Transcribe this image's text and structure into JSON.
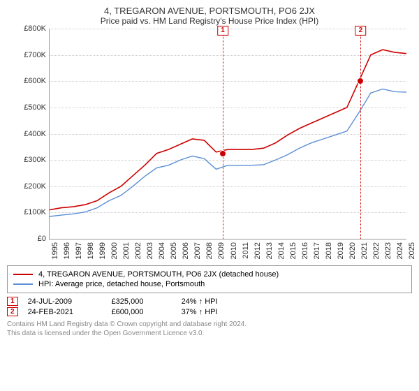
{
  "title": "4, TREGARON AVENUE, PORTSMOUTH, PO6 2JX",
  "subtitle": "Price paid vs. HM Land Registry's House Price Index (HPI)",
  "chart": {
    "type": "line",
    "background_color": "#ffffff",
    "grid_color": "#cccccc",
    "x_years": [
      1995,
      1996,
      1997,
      1998,
      1999,
      2000,
      2001,
      2002,
      2003,
      2004,
      2005,
      2006,
      2007,
      2008,
      2009,
      2010,
      2011,
      2012,
      2013,
      2014,
      2015,
      2016,
      2017,
      2018,
      2019,
      2020,
      2021,
      2022,
      2023,
      2024,
      2025
    ],
    "ylim": [
      0,
      800000
    ],
    "ytick_step": 100000,
    "ytick_labels": [
      "£0",
      "£100K",
      "£200K",
      "£300K",
      "£400K",
      "£500K",
      "£600K",
      "£700K",
      "£800K"
    ],
    "series": [
      {
        "name": "property",
        "label": "4, TREGARON AVENUE, PORTSMOUTH, PO6 2JX (detached house)",
        "color": "#cc0000",
        "line_width": 1.6,
        "y": [
          110,
          118,
          122,
          130,
          145,
          175,
          200,
          240,
          280,
          325,
          340,
          360,
          380,
          375,
          330,
          340,
          340,
          340,
          345,
          365,
          395,
          420,
          440,
          460,
          480,
          500,
          600,
          700,
          720,
          710,
          705
        ]
      },
      {
        "name": "hpi",
        "label": "HPI: Average price, detached house, Portsmouth",
        "color": "#5b8fd6",
        "line_width": 1.4,
        "y": [
          85,
          90,
          95,
          102,
          118,
          145,
          165,
          200,
          238,
          270,
          280,
          300,
          315,
          305,
          265,
          280,
          280,
          280,
          282,
          300,
          320,
          345,
          365,
          380,
          395,
          410,
          480,
          555,
          570,
          560,
          558
        ]
      }
    ],
    "sales": [
      {
        "flag": "1",
        "year": 2009.56,
        "price_k": 325,
        "date": "24-JUL-2009",
        "price_label": "£325,000",
        "diff": "24% ↑ HPI"
      },
      {
        "flag": "2",
        "year": 2021.15,
        "price_k": 600,
        "date": "24-FEB-2021",
        "price_label": "£600,000",
        "diff": "37% ↑ HPI"
      }
    ]
  },
  "legend": {
    "items": [
      {
        "color": "#cc0000",
        "text": "4, TREGARON AVENUE, PORTSMOUTH, PO6 2JX (detached house)"
      },
      {
        "color": "#5b8fd6",
        "text": "HPI: Average price, detached house, Portsmouth"
      }
    ]
  },
  "footer": {
    "line1": "Contains HM Land Registry data © Crown copyright and database right 2024.",
    "line2": "This data is licensed under the Open Government Licence v3.0."
  }
}
